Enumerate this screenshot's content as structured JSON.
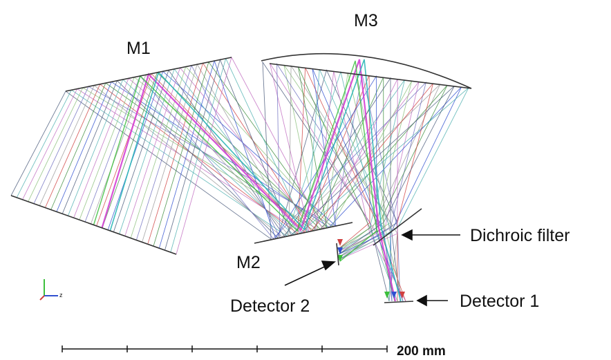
{
  "labels": {
    "m1": "M1",
    "m2": "M2",
    "m3": "M3",
    "dichroic": "Dichroic filter",
    "detector1": "Detector 1",
    "detector2": "Detector 2"
  },
  "scale_bar": {
    "label": "200 mm",
    "ticks": 6
  },
  "axis_glyph": {
    "label": "z"
  },
  "colors": {
    "structure": "#333333",
    "ray_palette": [
      "#4a5a7a",
      "#4fb0b0",
      "#c06cc0",
      "#8bbf7a",
      "#6f6fc0",
      "#9a9a9a",
      "#d04040",
      "#3c8c3c",
      "#3050d0"
    ],
    "highlight_magenta": "#d43fd4",
    "highlight_cyan": "#29b6b6",
    "highlight_green": "#3cbf3c"
  }
}
